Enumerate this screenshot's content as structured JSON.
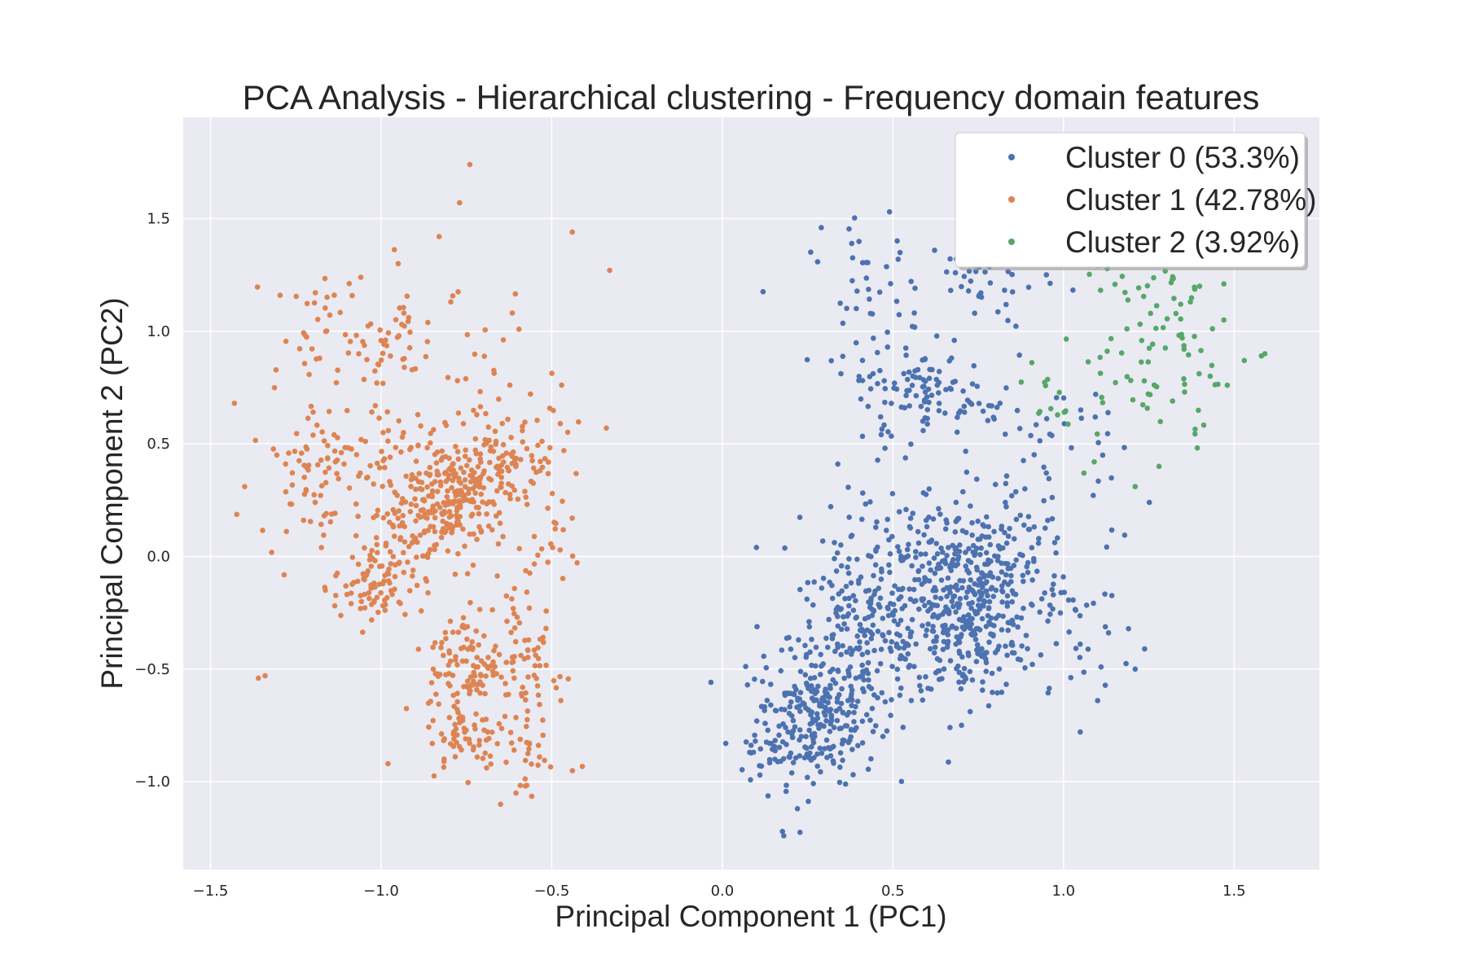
{
  "chart_data": {
    "type": "scatter",
    "title": "PCA Analysis - Hierarchical clustering - Frequency domain features",
    "xlabel": "Principal Component 1 (PC1)",
    "ylabel": "Principal Component 2 (PC2)",
    "xlim": [
      -1.58,
      1.75
    ],
    "ylim": [
      -1.39,
      1.95
    ],
    "xticks": [
      -1.5,
      -1.0,
      -0.5,
      0.0,
      0.5,
      1.0,
      1.5
    ],
    "xtick_labels": [
      "−1.5",
      "−1.0",
      "−0.5",
      "0.0",
      "0.5",
      "1.0",
      "1.5"
    ],
    "yticks": [
      -1.0,
      -0.5,
      0.0,
      0.5,
      1.0,
      1.5
    ],
    "ytick_labels": [
      "−1.0",
      "−0.5",
      "0.0",
      "0.5",
      "1.0",
      "1.5"
    ],
    "grid": true,
    "background": "#EAEAF2",
    "legend_position": "top-right",
    "series": [
      {
        "name": "Cluster 0 (53.3%)",
        "color": "#4C72B0",
        "clusters": [
          {
            "cx": 0.28,
            "cy": -0.72,
            "sx": 0.09,
            "sy": 0.14,
            "n": 240
          },
          {
            "cx": 0.42,
            "cy": -0.35,
            "sx": 0.11,
            "sy": 0.16,
            "n": 200
          },
          {
            "cx": 0.72,
            "cy": -0.35,
            "sx": 0.1,
            "sy": 0.14,
            "n": 220
          },
          {
            "cx": 0.62,
            "cy": 0.0,
            "sx": 0.15,
            "sy": 0.16,
            "n": 200
          },
          {
            "cx": 0.8,
            "cy": -0.08,
            "sx": 0.1,
            "sy": 0.12,
            "n": 100
          },
          {
            "cx": 0.58,
            "cy": 0.75,
            "sx": 0.06,
            "sy": 0.08,
            "n": 60
          },
          {
            "cx": 0.75,
            "cy": 0.65,
            "sx": 0.07,
            "sy": 0.07,
            "n": 30
          },
          {
            "cx": 0.48,
            "cy": 0.62,
            "sx": 0.05,
            "sy": 0.12,
            "n": 25
          },
          {
            "cx": 0.42,
            "cy": 1.15,
            "sx": 0.08,
            "sy": 0.16,
            "n": 45
          },
          {
            "cx": 0.78,
            "cy": 1.22,
            "sx": 0.09,
            "sy": 0.12,
            "n": 45
          },
          {
            "cx": 0.98,
            "cy": 0.4,
            "sx": 0.1,
            "sy": 0.22,
            "n": 45
          },
          {
            "cx": 1.05,
            "cy": -0.35,
            "sx": 0.08,
            "sy": 0.18,
            "n": 30
          },
          {
            "cx": 0.15,
            "cy": -0.85,
            "sx": 0.07,
            "sy": 0.15,
            "n": 30
          }
        ],
        "points": [
          [
            0.1,
            0.04
          ],
          [
            0.01,
            -0.83
          ],
          [
            0.18,
            -1.24
          ],
          [
            0.22,
            -1.12
          ],
          [
            1.1,
            -0.64
          ],
          [
            1.21,
            -0.5
          ],
          [
            0.49,
            1.53
          ],
          [
            0.29,
            1.46
          ]
        ]
      },
      {
        "name": "Cluster 1 (42.78%)",
        "color": "#DD8452",
        "clusters": [
          {
            "cx": -0.78,
            "cy": 0.28,
            "sx": 0.07,
            "sy": 0.12,
            "n": 160
          },
          {
            "cx": -0.88,
            "cy": 0.18,
            "sx": 0.08,
            "sy": 0.12,
            "n": 100
          },
          {
            "cx": -1.02,
            "cy": -0.12,
            "sx": 0.06,
            "sy": 0.1,
            "n": 90
          },
          {
            "cx": -0.76,
            "cy": -0.48,
            "sx": 0.05,
            "sy": 0.13,
            "n": 100
          },
          {
            "cx": -0.76,
            "cy": -0.8,
            "sx": 0.05,
            "sy": 0.08,
            "n": 50
          },
          {
            "cx": -0.58,
            "cy": -0.5,
            "sx": 0.06,
            "sy": 0.2,
            "n": 75
          },
          {
            "cx": -0.62,
            "cy": 0.45,
            "sx": 0.07,
            "sy": 0.1,
            "n": 60
          },
          {
            "cx": -1.2,
            "cy": 0.4,
            "sx": 0.08,
            "sy": 0.16,
            "n": 80
          },
          {
            "cx": -1.12,
            "cy": 0.98,
            "sx": 0.1,
            "sy": 0.14,
            "n": 50
          },
          {
            "cx": -0.95,
            "cy": 0.95,
            "sx": 0.05,
            "sy": 0.1,
            "n": 25
          },
          {
            "cx": -0.72,
            "cy": 0.75,
            "sx": 0.12,
            "sy": 0.25,
            "n": 45
          },
          {
            "cx": -0.55,
            "cy": 0.1,
            "sx": 0.06,
            "sy": 0.2,
            "n": 40
          },
          {
            "cx": -0.58,
            "cy": -0.9,
            "sx": 0.05,
            "sy": 0.12,
            "n": 25
          },
          {
            "cx": -0.98,
            "cy": 0.4,
            "sx": 0.05,
            "sy": 0.2,
            "n": 40
          }
        ],
        "points": [
          [
            -0.74,
            1.74
          ],
          [
            -0.77,
            1.57
          ],
          [
            -0.83,
            1.42
          ],
          [
            -0.44,
            1.44
          ],
          [
            -0.33,
            1.27
          ],
          [
            -0.95,
            1.3
          ],
          [
            -1.43,
            0.68
          ],
          [
            -1.36,
            -0.54
          ],
          [
            -1.34,
            -0.53
          ],
          [
            -1.4,
            0.31
          ],
          [
            -0.65,
            -1.1
          ],
          [
            -0.98,
            -0.92
          ],
          [
            -0.44,
            0.17
          ],
          [
            -0.34,
            0.57
          ]
        ]
      },
      {
        "name": "Cluster 2 (3.92%)",
        "color": "#55A868",
        "clusters": [
          {
            "cx": 1.3,
            "cy": 1.1,
            "sx": 0.08,
            "sy": 0.15,
            "n": 40
          },
          {
            "cx": 1.18,
            "cy": 0.8,
            "sx": 0.1,
            "sy": 0.12,
            "n": 25
          },
          {
            "cx": 1.35,
            "cy": 0.7,
            "sx": 0.06,
            "sy": 0.12,
            "n": 15
          },
          {
            "cx": 0.95,
            "cy": 0.72,
            "sx": 0.04,
            "sy": 0.08,
            "n": 12
          },
          {
            "cx": 1.12,
            "cy": 1.2,
            "sx": 0.08,
            "sy": 0.08,
            "n": 12
          }
        ],
        "points": [
          [
            1.58,
            0.89
          ],
          [
            1.59,
            0.9
          ],
          [
            1.53,
            0.87
          ],
          [
            1.43,
            0.8
          ],
          [
            1.48,
            0.76
          ],
          [
            1.47,
            1.05
          ],
          [
            1.47,
            1.21
          ],
          [
            1.21,
            0.31
          ],
          [
            1.06,
            0.37
          ],
          [
            1.09,
            0.42
          ],
          [
            1.28,
            0.4
          ]
        ]
      }
    ]
  }
}
